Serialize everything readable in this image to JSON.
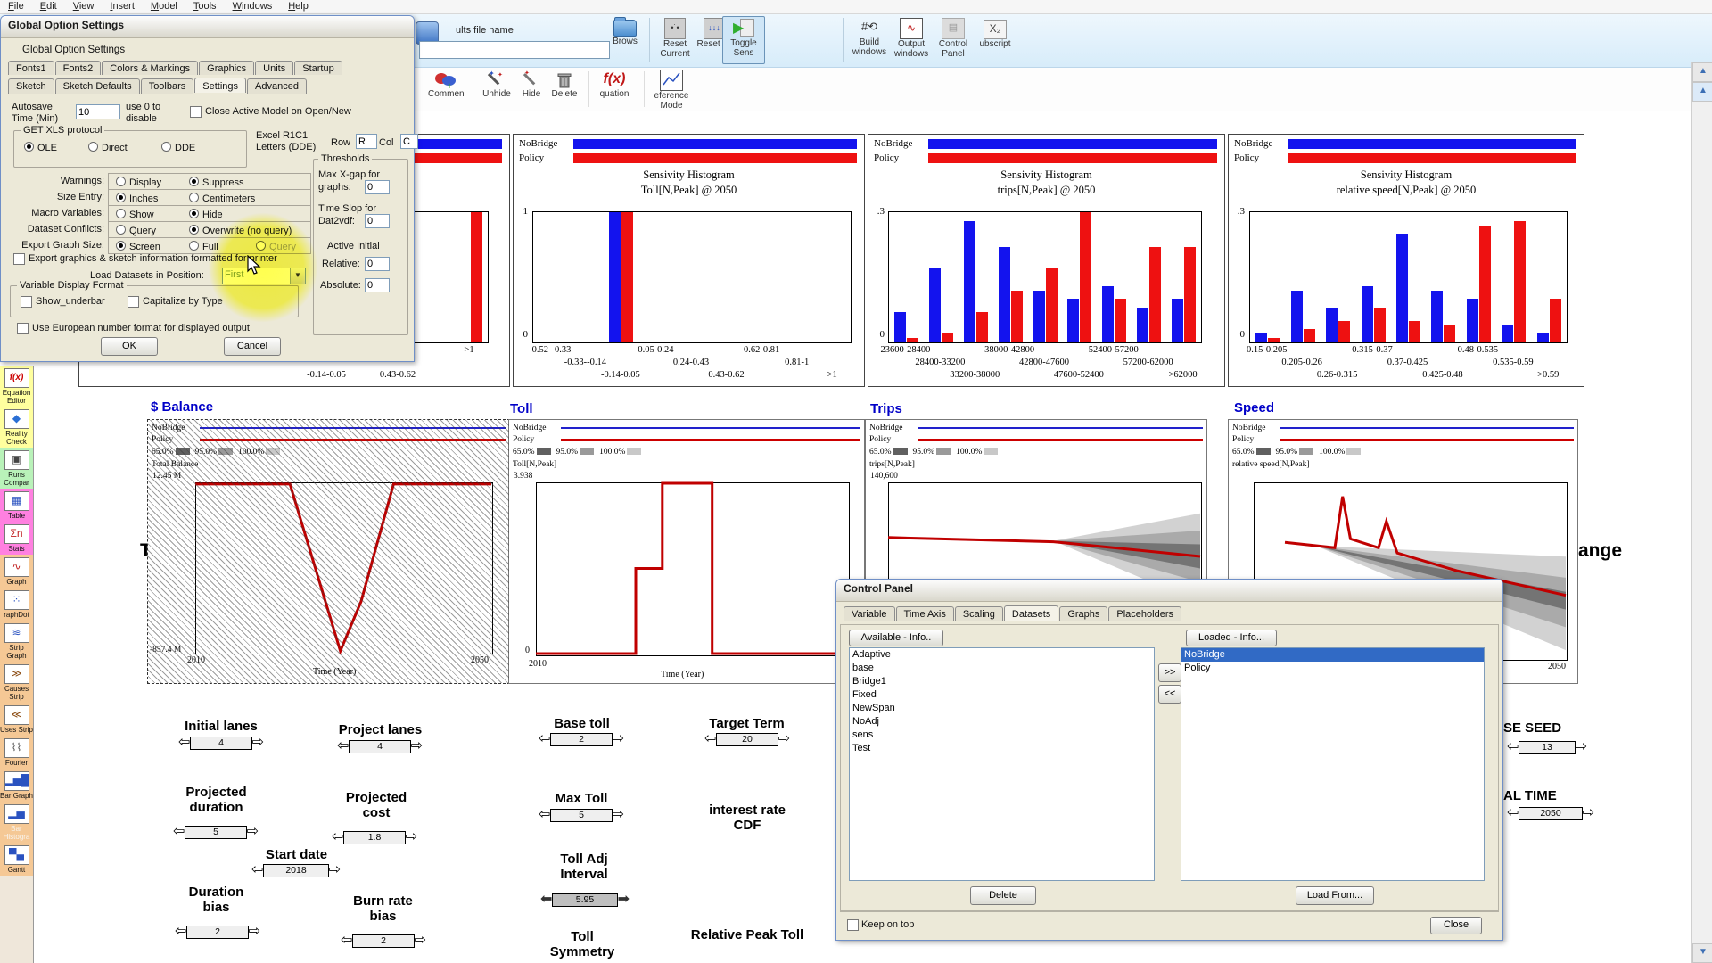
{
  "menu": {
    "items": [
      "File",
      "Edit",
      "View",
      "Insert",
      "Model",
      "Tools",
      "Windows",
      "Help"
    ]
  },
  "toolbar": {
    "file_label_fragment": "ults file name",
    "filename_value": "",
    "browse_label": "Brows",
    "reset_current_label": "Reset Current",
    "reset_all_label": "Reset all",
    "toggle_sens_label": "Toggle Sens",
    "build_windows_label": "Build windows",
    "output_windows_label": "Output windows",
    "control_panel_label": "Control Panel",
    "subscript_label": "ubscript",
    "row2": [
      {
        "label": "Commen"
      },
      {
        "label": "Unhide"
      },
      {
        "label": "Hide"
      },
      {
        "label": "Delete"
      },
      {
        "label": "quation"
      },
      {
        "label": "eference Mode"
      }
    ],
    "equation_icon_text": "f(x)"
  },
  "global_options_dialog": {
    "title": "Global Option Settings",
    "group_title": "Global Option Settings",
    "tabs_row1": [
      "Fonts1",
      "Fonts2",
      "Colors & Markings",
      "Graphics",
      "Units",
      "Startup"
    ],
    "tabs_row2": [
      "Sketch",
      "Sketch Defaults",
      "Toolbars",
      "Settings",
      "Advanced"
    ],
    "active_tab": "Settings",
    "autosave_label": "Autosave Time (Min)",
    "autosave_value": "10",
    "autosave_hint": "use 0 to disable",
    "close_active_label": "Close Active Model on Open/New",
    "xls_group_title": "GET XLS protocol",
    "xls_options": [
      "OLE",
      "Direct",
      "DDE"
    ],
    "excel_label": "Excel R1C1 Letters (DDE)",
    "row_label": "Row",
    "row_value": "R",
    "col_label": "Col",
    "col_value": "C",
    "radio_rows": [
      {
        "label": "Warnings:",
        "options": [
          "Display",
          "Suppress"
        ],
        "selected": 1
      },
      {
        "label": "Size Entry:",
        "options": [
          "Inches",
          "Centimeters"
        ],
        "selected": 0
      },
      {
        "label": "Macro Variables:",
        "options": [
          "Show",
          "Hide"
        ],
        "selected": 1
      },
      {
        "label": "Dataset Conflicts:",
        "options": [
          "Query",
          "Overwrite (no query)"
        ],
        "selected": 1
      },
      {
        "label": "Export Graph Size:",
        "options": [
          "Screen",
          "Full",
          "Query"
        ],
        "selected": 0,
        "disabled_index": 2
      }
    ],
    "printer_check_label": "Export graphics & sketch information formatted for printer",
    "load_datasets_label": "Load Datasets in Position:",
    "load_datasets_value": "First",
    "vdf_group_title": "Variable Display Format",
    "vdf_checks": [
      "Show_underbar",
      "Capitalize by Type"
    ],
    "euro_check_label": "Use European number format for displayed output",
    "thresholds": {
      "title": "Thresholds",
      "maxx_line1": "Max X-gap for",
      "maxx_line2": "graphs:",
      "maxx_value": "0",
      "slop_line1": "Time Slop for",
      "slop_line2": "Dat2vdf:",
      "slop_value": "0",
      "active_initial": "Active Initial",
      "relative_label": "Relative:",
      "relative_value": "0",
      "absolute_label": "Absolute:",
      "absolute_value": "0"
    },
    "ok_label": "OK",
    "cancel_label": "Cancel"
  },
  "control_panel_dialog": {
    "title": "Control Panel",
    "tabs": [
      "Variable",
      "Time Axis",
      "Scaling",
      "Datasets",
      "Graphs",
      "Placeholders"
    ],
    "active_tab": "Datasets",
    "available_button": "Available - Info..",
    "loaded_button": "Loaded - Info...",
    "available_list": [
      "Adaptive",
      "base",
      "Bridge1",
      "Fixed",
      "NewSpan",
      "NoAdj",
      "sens",
      "Test"
    ],
    "loaded_list": [
      "NoBridge",
      "Policy"
    ],
    "selected_loaded": "NoBridge",
    "move_right": ">>",
    "move_left": "<<",
    "delete_label": "Delete",
    "load_from_label": "Load From...",
    "keep_on_top_label": "Keep on top",
    "close_label": "Close"
  },
  "chart_data": [
    {
      "type": "bar",
      "id": "hist-hidden",
      "title1": "",
      "title2": "",
      "legend": [
        "NoBridge",
        "Policy"
      ],
      "ymax_label": "",
      "ymin_label": "",
      "ylim": [
        0,
        1
      ],
      "bins": [
        "",
        "",
        "",
        "",
        "-0.14-0.05",
        "",
        "0.43-0.62",
        "",
        ">1"
      ],
      "rows": [
        1,
        1,
        1,
        1,
        3,
        1,
        3,
        1,
        1
      ],
      "series": [
        {
          "name": "NoBridge",
          "color": "#1313ee",
          "values": [
            0,
            0,
            0,
            0,
            0,
            0,
            0,
            0,
            0
          ]
        },
        {
          "name": "Policy",
          "color": "#ee1111",
          "values": [
            0,
            0,
            0,
            0,
            0,
            0,
            0,
            0,
            1
          ]
        }
      ]
    },
    {
      "type": "bar",
      "id": "hist-toll",
      "title1": "Sensivity Histogram",
      "title2": "Toll[N,Peak] @ 2050",
      "legend": [
        "NoBridge",
        "Policy"
      ],
      "ymax_label": "1",
      "ymin_label": "0",
      "ylim": [
        0,
        1
      ],
      "bins": [
        "-0.52--0.33",
        "-0.33--0.14",
        "-0.14-0.05",
        "0.05-0.24",
        "0.24-0.43",
        "0.43-0.62",
        "0.62-0.81",
        "0.81-1",
        ">1"
      ],
      "rows": [
        1,
        2,
        3,
        1,
        2,
        3,
        1,
        2,
        3
      ],
      "series": [
        {
          "name": "NoBridge",
          "color": "#1313ee",
          "values": [
            0,
            0,
            1,
            0,
            0,
            0,
            0,
            0,
            0
          ]
        },
        {
          "name": "Policy",
          "color": "#ee1111",
          "values": [
            0,
            0,
            1,
            0,
            0,
            0,
            0,
            0,
            0
          ]
        }
      ]
    },
    {
      "type": "bar",
      "id": "hist-trips",
      "title1": "Sensivity Histogram",
      "title2": "trips[N,Peak] @ 2050",
      "legend": [
        "NoBridge",
        "Policy"
      ],
      "ymax_label": ".3",
      "ymin_label": "0",
      "ylim": [
        0,
        0.3
      ],
      "bins": [
        "23600-28400",
        "28400-33200",
        "33200-38000",
        "38000-42800",
        "42800-47600",
        "47600-52400",
        "52400-57200",
        "57200-62000",
        ">62000"
      ],
      "rows": [
        1,
        2,
        3,
        1,
        2,
        3,
        1,
        2,
        3
      ],
      "series": [
        {
          "name": "NoBridge",
          "color": "#1313ee",
          "values": [
            0.07,
            0.17,
            0.28,
            0.22,
            0.12,
            0.1,
            0.13,
            0.08,
            0.1
          ]
        },
        {
          "name": "Policy",
          "color": "#ee1111",
          "values": [
            0.01,
            0.02,
            0.07,
            0.12,
            0.17,
            0.3,
            0.1,
            0.22,
            0.22
          ]
        }
      ]
    },
    {
      "type": "bar",
      "id": "hist-speed",
      "title1": "Sensivity Histogram",
      "title2": "relative speed[N,Peak] @ 2050",
      "legend": [
        "NoBridge",
        "Policy"
      ],
      "ymax_label": ".3",
      "ymin_label": "0",
      "ylim": [
        0,
        0.3
      ],
      "bins": [
        "0.15-0.205",
        "0.205-0.26",
        "0.26-0.315",
        "0.315-0.37",
        "0.37-0.425",
        "0.425-0.48",
        "0.48-0.535",
        "0.535-0.59",
        ">0.59"
      ],
      "rows": [
        1,
        2,
        3,
        1,
        2,
        3,
        1,
        2,
        3
      ],
      "series": [
        {
          "name": "NoBridge",
          "color": "#1313ee",
          "values": [
            0.02,
            0.12,
            0.08,
            0.13,
            0.25,
            0.12,
            0.1,
            0.04,
            0.02
          ]
        },
        {
          "name": "Policy",
          "color": "#ee1111",
          "values": [
            0.01,
            0.03,
            0.05,
            0.08,
            0.05,
            0.04,
            0.27,
            0.28,
            0.1
          ]
        }
      ]
    },
    {
      "type": "line",
      "id": "graph-balance",
      "title": "$ Balance",
      "legend": [
        "NoBridge",
        "Policy"
      ],
      "bands": [
        "65.0%",
        "95.0%",
        "100.0%"
      ],
      "var_label": "Total Balance",
      "ymax_label": "12.45 M",
      "ymin_label": "-857.4 M",
      "x_left": "2010",
      "x_right": "2050",
      "xlabel": "Time (Year)",
      "hatched": true,
      "line": [
        [
          0,
          0.99
        ],
        [
          0.32,
          0.99
        ],
        [
          0.49,
          0.01
        ],
        [
          0.56,
          0.3
        ],
        [
          0.67,
          0.99
        ],
        [
          1,
          0.99
        ]
      ],
      "fans": []
    },
    {
      "type": "line",
      "id": "graph-toll",
      "title": "Toll",
      "legend": [
        "NoBridge",
        "Policy"
      ],
      "bands": [
        "65.0%",
        "95.0%",
        "100.0%"
      ],
      "var_label": "Toll[N,Peak]",
      "ymax_label": "3.938",
      "ymin_label": "0",
      "x_left": "2010",
      "x_right": "",
      "xlabel": "Time (Year)",
      "hatched": false,
      "line": [
        [
          0,
          0.005
        ],
        [
          0.32,
          0.005
        ],
        [
          0.32,
          0.5
        ],
        [
          0.405,
          0.5
        ],
        [
          0.405,
          0.995
        ],
        [
          0.565,
          0.995
        ],
        [
          0.565,
          0.005
        ],
        [
          1,
          0.005
        ]
      ],
      "fans": []
    },
    {
      "type": "line",
      "id": "graph-trips",
      "title": "Trips",
      "legend": [
        "NoBridge",
        "Policy"
      ],
      "bands": [
        "65.0%",
        "95.0%",
        "100.0%"
      ],
      "var_label": "trips[N,Peak]",
      "ymax_label": "140,600",
      "ymin_label": "",
      "x_left": "",
      "x_right": "",
      "xlabel": "",
      "hatched": false,
      "line": [
        [
          0,
          0.68
        ],
        [
          0.53,
          0.655
        ],
        [
          1,
          0.57
        ]
      ],
      "fans": [
        {
          "color": "#d2d2d2",
          "pts": [
            [
              0.53,
              0.66
            ],
            [
              1,
              0.82
            ],
            [
              1,
              0.3
            ]
          ]
        },
        {
          "color": "#aaaaaa",
          "pts": [
            [
              0.53,
              0.66
            ],
            [
              1,
              0.72
            ],
            [
              1,
              0.42
            ]
          ]
        },
        {
          "color": "#747474",
          "pts": [
            [
              0.53,
              0.66
            ],
            [
              1,
              0.64
            ],
            [
              1,
              0.5
            ]
          ]
        }
      ]
    },
    {
      "type": "line",
      "id": "graph-speed",
      "title": "Speed",
      "legend": [
        "NoBridge",
        "Policy"
      ],
      "bands": [
        "65.0%",
        "95.0%",
        "100.0%"
      ],
      "var_label": "relative speed[N,Peak]",
      "ymax_label": "",
      "ymin_label": "",
      "x_left": "",
      "x_right": "2050",
      "xlabel": "",
      "hatched": false,
      "line": [
        [
          0.1,
          0.66
        ],
        [
          0.26,
          0.63
        ],
        [
          0.285,
          0.92
        ],
        [
          0.31,
          0.68
        ],
        [
          0.4,
          0.63
        ],
        [
          0.425,
          0.78
        ],
        [
          0.46,
          0.6
        ],
        [
          0.65,
          0.5
        ],
        [
          1,
          0.36
        ]
      ],
      "fans": [
        {
          "color": "#d2d2d2",
          "pts": [
            [
              0.2,
              0.64
            ],
            [
              1,
              0.58
            ],
            [
              1,
              0.05
            ]
          ]
        },
        {
          "color": "#aaaaaa",
          "pts": [
            [
              0.2,
              0.64
            ],
            [
              1,
              0.46
            ],
            [
              1,
              0.18
            ]
          ]
        },
        {
          "color": "#747474",
          "pts": [
            [
              0.2,
              0.64
            ],
            [
              1,
              0.38
            ],
            [
              1,
              0.28
            ]
          ]
        }
      ]
    }
  ],
  "sliders": [
    {
      "label": "Initial lanes",
      "value": "4"
    },
    {
      "label": "Project lanes",
      "value": "4"
    },
    {
      "label": "Base toll",
      "value": "2"
    },
    {
      "label": "Target Term",
      "value": "20"
    },
    {
      "label": "Projected duration",
      "value": "5"
    },
    {
      "label": "Projected cost",
      "value": "1.8"
    },
    {
      "label": "Max Toll",
      "value": "5"
    },
    {
      "label": "interest rate CDF",
      "value": ""
    },
    {
      "label": "Start date",
      "value": "2018"
    },
    {
      "label": "Toll Adj Interval",
      "value": "5.95"
    },
    {
      "label": "Duration bias",
      "value": "2"
    },
    {
      "label": "Burn rate bias",
      "value": "2"
    },
    {
      "label": "Toll Symmetry",
      "value": ""
    },
    {
      "label": "Relative Peak Toll",
      "value": ""
    },
    {
      "label": "SE SEED",
      "value": "13"
    },
    {
      "label": "AL TIME",
      "value": "2050"
    }
  ],
  "sketch_fragments": {
    "t_fragment": "T",
    "ange_fragment": "ange"
  },
  "sidebar": {
    "items": [
      {
        "label": "Equation Editor",
        "glyph": "f(x)",
        "bg": "#ffff9e",
        "glyph_color": "#cc0000"
      },
      {
        "label": "Reality Check",
        "glyph": "◆",
        "bg": "#ffff9e",
        "glyph_color": "#2a6fd4"
      },
      {
        "label": "Runs Compar",
        "glyph": "▣",
        "bg": "#b9f2b9",
        "glyph_color": "#444444"
      },
      {
        "label": "Table",
        "glyph": "▦",
        "bg": "#ff80e0",
        "glyph_color": "#2a52c0"
      },
      {
        "label": "Stats",
        "glyph": "Σn",
        "bg": "#ff80e0",
        "glyph_color": "#c02020"
      },
      {
        "label": "Graph",
        "glyph": "∿",
        "bg": "#f5c895",
        "glyph_color": "#c02020"
      },
      {
        "label": "raphDot",
        "glyph": "⁙",
        "bg": "#f5c895",
        "glyph_color": "#2a52c0"
      },
      {
        "label": "Strip Graph",
        "glyph": "≋",
        "bg": "#f5c895",
        "glyph_color": "#2a52c0"
      },
      {
        "label": "Causes Strip",
        "glyph": "≫",
        "bg": "#f5c895",
        "glyph_color": "#8a4a10"
      },
      {
        "label": "Uses Strip",
        "glyph": "≪",
        "bg": "#f5c895",
        "glyph_color": "#8a4a10"
      },
      {
        "label": "Fourier",
        "glyph": "⌇⌇",
        "bg": "#f5c895",
        "glyph_color": "#555555"
      },
      {
        "label": "Bar Graph",
        "glyph": "▂▅█",
        "bg": "#f5c895",
        "glyph_color": "#2a52c0"
      },
      {
        "label": "Bar Histogra",
        "glyph": "▂▅",
        "bg": "#f5c895",
        "glyph_color": "#2a52c0",
        "dim": true
      },
      {
        "label": "Gantt",
        "glyph": "▀▄",
        "bg": "#f5c895",
        "glyph_color": "#2a52c0"
      }
    ]
  }
}
